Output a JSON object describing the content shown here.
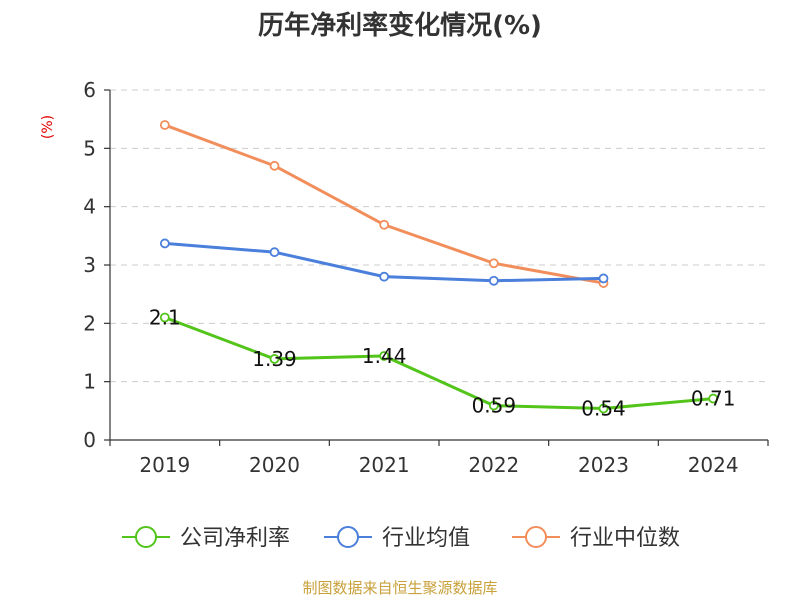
{
  "chart_data": {
    "type": "line",
    "title": "历年净利率变化情况(%)",
    "ylabel": "(%)",
    "xlabel": "",
    "categories": [
      "2019",
      "2020",
      "2021",
      "2022",
      "2023",
      "2024"
    ],
    "ylim": [
      0,
      6
    ],
    "yticks": [
      0,
      1,
      2,
      3,
      4,
      5,
      6
    ],
    "grid": true,
    "legend_position": "bottom",
    "series": [
      {
        "name": "公司净利率",
        "color": "#52c41a",
        "values": [
          2.1,
          1.39,
          1.44,
          0.59,
          0.54,
          0.71
        ],
        "labels": [
          "2.1",
          "1.39",
          "1.44",
          "0.59",
          "0.54",
          "0.71"
        ]
      },
      {
        "name": "行业均值",
        "color": "#4a7fdb",
        "values": [
          3.37,
          3.22,
          2.8,
          2.73,
          2.77,
          null
        ]
      },
      {
        "name": "行业中位数",
        "color": "#f28e5b",
        "values": [
          5.4,
          4.7,
          3.69,
          3.03,
          2.69,
          null
        ]
      }
    ]
  },
  "footer": {
    "source": "制图数据来自恒生聚源数据库"
  }
}
